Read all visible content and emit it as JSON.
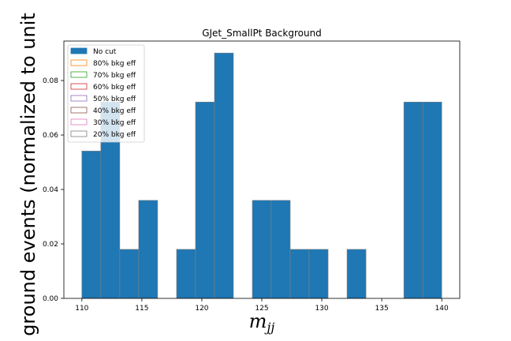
{
  "chart_data": {
    "type": "bar",
    "title": "GJet_SmallPt Background",
    "xlabel": "m",
    "xlabel_sub": "jj",
    "ylabel": "ground events (normalized to unit",
    "xlim": [
      108.5,
      141.5
    ],
    "ylim": [
      0,
      0.0945
    ],
    "xticks": [
      110,
      115,
      120,
      125,
      130,
      135,
      140
    ],
    "yticks": [
      "0.00",
      "0.02",
      "0.04",
      "0.06",
      "0.08"
    ],
    "bin_edges": [
      110,
      111.579,
      113.158,
      114.737,
      116.316,
      117.895,
      119.474,
      121.053,
      122.632,
      124.211,
      125.789,
      127.368,
      128.947,
      130.526,
      132.105,
      133.684,
      135.263,
      136.842,
      138.421,
      140
    ],
    "values": [
      0.0541,
      0.0721,
      0.018,
      0.036,
      0,
      0.018,
      0.0721,
      0.0901,
      0,
      0.036,
      0.036,
      0.018,
      0.018,
      0,
      0.018,
      0,
      0,
      0.0721,
      0.0721
    ],
    "fill_color": "#1f77b4",
    "edge_color": "#7f7f7f",
    "grid": false,
    "legend_position": "top-left",
    "legend": [
      {
        "label": "No cut",
        "color": "#1f77b4",
        "filled": true
      },
      {
        "label": "80% bkg eff",
        "color": "#ff7f0e",
        "filled": false
      },
      {
        "label": "70% bkg eff",
        "color": "#2ca02c",
        "filled": false
      },
      {
        "label": "60% bkg eff",
        "color": "#d62728",
        "filled": false
      },
      {
        "label": "50% bkg eff",
        "color": "#9467bd",
        "filled": false
      },
      {
        "label": "40% bkg eff",
        "color": "#8c564b",
        "filled": false
      },
      {
        "label": "30% bkg eff",
        "color": "#e377c2",
        "filled": false
      },
      {
        "label": "20% bkg eff",
        "color": "#7f7f7f",
        "filled": false
      }
    ]
  }
}
